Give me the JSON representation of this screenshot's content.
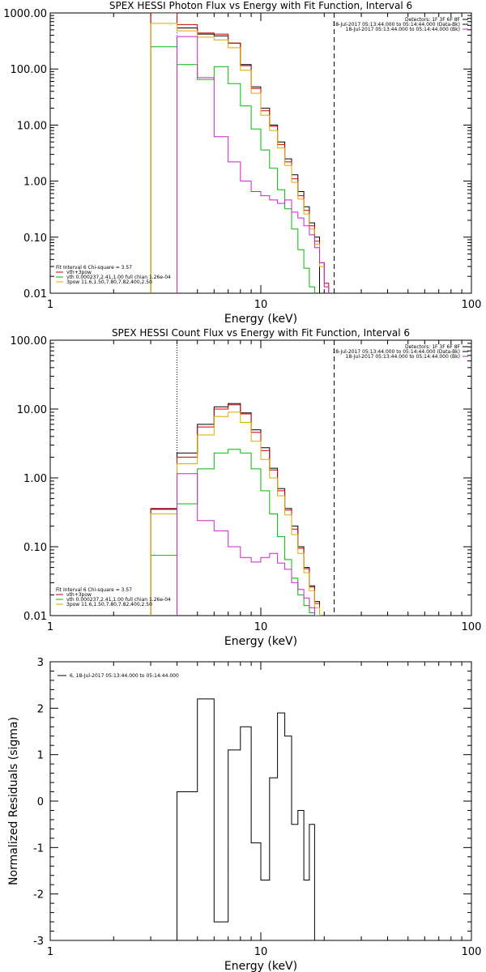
{
  "chart_data": [
    {
      "type": "line",
      "title": "SPEX HESSI Photon Flux vs Energy with Fit Function, Interval 6",
      "xlabel": "Energy (keV)",
      "ylabel": "",
      "xscale": "log",
      "yscale": "log",
      "xlim": [
        1,
        100
      ],
      "ylim": [
        0.01,
        1000
      ],
      "x_tick_labels": [
        "1",
        "10",
        "100"
      ],
      "y_tick_labels": [
        "0.01",
        "0.10",
        "1.00",
        "10.00",
        "100.00",
        "1000.00"
      ],
      "info_lines": [
        {
          "text": "Detectors: 1F 3F 6F 8F",
          "color": "#000000"
        },
        {
          "text": "18-Jul-2017 05:13:44.000 to 05:14:44.000 (Data-Bk)",
          "color": "#000000"
        },
        {
          "text": "18-Jul-2017 05:13:44.000 to 05:14:44.000 (Bk)",
          "color": "#cc22cc"
        }
      ],
      "fit_lines": [
        {
          "text": "Fit Interval  6    Chi-square = 3.57",
          "color": "#000000"
        },
        {
          "text": "vth+3pow",
          "color": "#cc0000"
        },
        {
          "text": "vth 0.000237,2.41,1.00  full chian 1.26e-04",
          "color": "#00bb00"
        },
        {
          "text": "3pow 11.6,1.50,7.80,7.82,400,2.50",
          "color": "#ddaa00"
        }
      ],
      "vlines": [
        {
          "x": 4,
          "style": "dotted",
          "color": "#cc22cc"
        },
        {
          "x": 22.3,
          "style": "dashed",
          "color": "#000000"
        }
      ],
      "bin_edges": [
        3.0,
        4.0,
        5.0,
        6.0,
        7.0,
        8.0,
        9.0,
        10.0,
        11.0,
        12.0,
        13.0,
        14.0,
        15.0,
        16.0,
        17.0,
        18.0,
        19.0,
        20.0,
        21.0,
        22.0,
        23.5,
        25.5,
        28.0
      ],
      "series": [
        {
          "id": "data",
          "color": "#000000",
          "values": [
            1000,
            540,
            420,
            390,
            290,
            120,
            48,
            20,
            10.0,
            5.0,
            2.5,
            1.3,
            0.65,
            0.35,
            0.18,
            0.1,
            null,
            null,
            null,
            null,
            null,
            null
          ]
        },
        {
          "id": "model",
          "color": "#cc0000",
          "values": [
            1000,
            620,
            440,
            420,
            290,
            115,
            45,
            18,
            9.5,
            4.5,
            2.2,
            1.1,
            0.55,
            0.3,
            0.16,
            0.085,
            0.035,
            0.015,
            null,
            null,
            null,
            null
          ]
        },
        {
          "id": "thermal",
          "color": "#00bb00",
          "values": [
            250,
            120,
            65,
            110,
            55,
            22,
            8.5,
            3.6,
            1.7,
            0.7,
            0.32,
            0.14,
            0.06,
            0.028,
            0.013,
            null,
            null,
            null,
            null,
            null,
            null,
            null
          ]
        },
        {
          "id": "power",
          "color": "#ddaa00",
          "values": [
            650,
            480,
            370,
            330,
            240,
            95,
            37,
            15,
            8.0,
            3.9,
            1.9,
            0.95,
            0.48,
            0.26,
            0.14,
            0.075,
            0.03,
            0.013,
            null,
            null,
            null,
            null
          ]
        },
        {
          "id": "background",
          "color": "#cc22cc",
          "values": [
            null,
            380,
            70,
            6.2,
            2.2,
            1.0,
            0.65,
            0.55,
            0.46,
            0.4,
            0.46,
            0.28,
            0.22,
            0.16,
            0.11,
            0.065,
            0.035,
            0.013,
            null,
            null,
            null,
            null
          ]
        }
      ]
    },
    {
      "type": "line",
      "title": "SPEX HESSI Count Flux vs Energy with Fit Function, Interval 6",
      "xlabel": "Energy (keV)",
      "ylabel": "",
      "xscale": "log",
      "yscale": "log",
      "xlim": [
        1,
        100
      ],
      "ylim": [
        0.01,
        100
      ],
      "x_tick_labels": [
        "1",
        "10",
        "100"
      ],
      "y_tick_labels": [
        "0.01",
        "0.10",
        "1.00",
        "10.00",
        "100.00"
      ],
      "info_lines": [
        {
          "text": "Detectors: 1F 3F 6F 8F",
          "color": "#000000"
        },
        {
          "text": "18-Jul-2017 05:13:44.000 to 05:14:44.000 (Data-Bk)",
          "color": "#000000"
        },
        {
          "text": "18-Jul-2017 05:13:44.000 to 05:14:44.000 (Bk)",
          "color": "#cc22cc"
        }
      ],
      "fit_lines": [
        {
          "text": "Fit Interval  6    Chi-square = 3.57",
          "color": "#000000"
        },
        {
          "text": "vth+3pow",
          "color": "#cc0000"
        },
        {
          "text": "vth 0.000237,2.41,1.00  full chian 1.26e-04",
          "color": "#00bb00"
        },
        {
          "text": "3pow 11.6,1.50,7.80,7.82,400,2.50",
          "color": "#ddaa00"
        }
      ],
      "vlines": [
        {
          "x": 4,
          "style": "dotted",
          "color": "#000000"
        },
        {
          "x": 22.3,
          "style": "dashed",
          "color": "#000000"
        }
      ],
      "bin_edges": [
        3.0,
        4.0,
        5.0,
        6.0,
        7.0,
        8.0,
        9.0,
        10.0,
        11.0,
        12.0,
        13.0,
        14.0,
        15.0,
        16.0,
        17.0,
        18.0,
        19.0,
        20.0,
        21.0,
        22.0
      ],
      "series": [
        {
          "id": "data",
          "color": "#000000",
          "values": [
            0.35,
            2.3,
            6.0,
            10.8,
            12.0,
            8.8,
            5.0,
            2.75,
            1.38,
            0.7,
            0.36,
            0.2,
            0.1,
            0.05,
            0.027,
            0.016,
            null,
            null,
            null
          ]
        },
        {
          "id": "model",
          "color": "#cc0000",
          "values": [
            0.36,
            2.0,
            5.5,
            10.0,
            11.5,
            8.5,
            4.6,
            2.5,
            1.3,
            0.65,
            0.34,
            0.18,
            0.095,
            0.048,
            0.026,
            0.015,
            null,
            null,
            null
          ]
        },
        {
          "id": "thermal",
          "color": "#00bb00",
          "values": [
            0.075,
            0.42,
            1.35,
            2.3,
            2.6,
            2.3,
            1.35,
            0.65,
            0.3,
            0.14,
            0.065,
            0.035,
            0.02,
            0.014,
            0.011,
            0.01,
            null,
            null,
            null
          ]
        },
        {
          "id": "power",
          "color": "#ddaa00",
          "values": [
            0.3,
            1.6,
            4.2,
            7.8,
            9.0,
            6.4,
            3.4,
            1.85,
            1.0,
            0.55,
            0.29,
            0.15,
            0.08,
            0.042,
            0.023,
            0.013,
            null,
            null,
            null
          ]
        },
        {
          "id": "background",
          "color": "#cc22cc",
          "values": [
            null,
            1.15,
            0.24,
            0.17,
            0.1,
            0.07,
            0.06,
            0.07,
            0.08,
            0.058,
            0.047,
            0.03,
            0.024,
            0.018,
            0.013,
            null,
            null,
            null,
            null
          ]
        }
      ]
    },
    {
      "type": "line",
      "title": "",
      "xlabel": "Energy (keV)",
      "ylabel": "Normalized Residuals (sigma)",
      "xscale": "log",
      "yscale": "linear",
      "xlim": [
        1,
        100
      ],
      "ylim": [
        -3,
        3
      ],
      "x_tick_labels": [
        "1",
        "10",
        "100"
      ],
      "y_tick_labels": [
        "-3",
        "-2",
        "-1",
        "0",
        "1",
        "2",
        "3"
      ],
      "legend": {
        "text": "6, 18-Jul-2017 05:13:44.000 to 05:14:44.000",
        "color": "#000000"
      },
      "bin_edges": [
        4.0,
        5.0,
        6.0,
        7.0,
        8.0,
        9.0,
        10.0,
        11.0,
        12.0,
        13.0,
        14.0,
        15.0,
        16.0,
        17.0,
        18.0,
        19.0,
        20.0,
        21.0,
        22.0
      ],
      "series": [
        {
          "id": "residuals",
          "color": "#000000",
          "values": [
            0.2,
            2.2,
            -2.6,
            1.1,
            1.6,
            -0.9,
            -1.7,
            0.5,
            1.9,
            1.4,
            -0.5,
            -0.2,
            -1.7,
            -0.5,
            null,
            null,
            null,
            null
          ]
        }
      ]
    }
  ]
}
